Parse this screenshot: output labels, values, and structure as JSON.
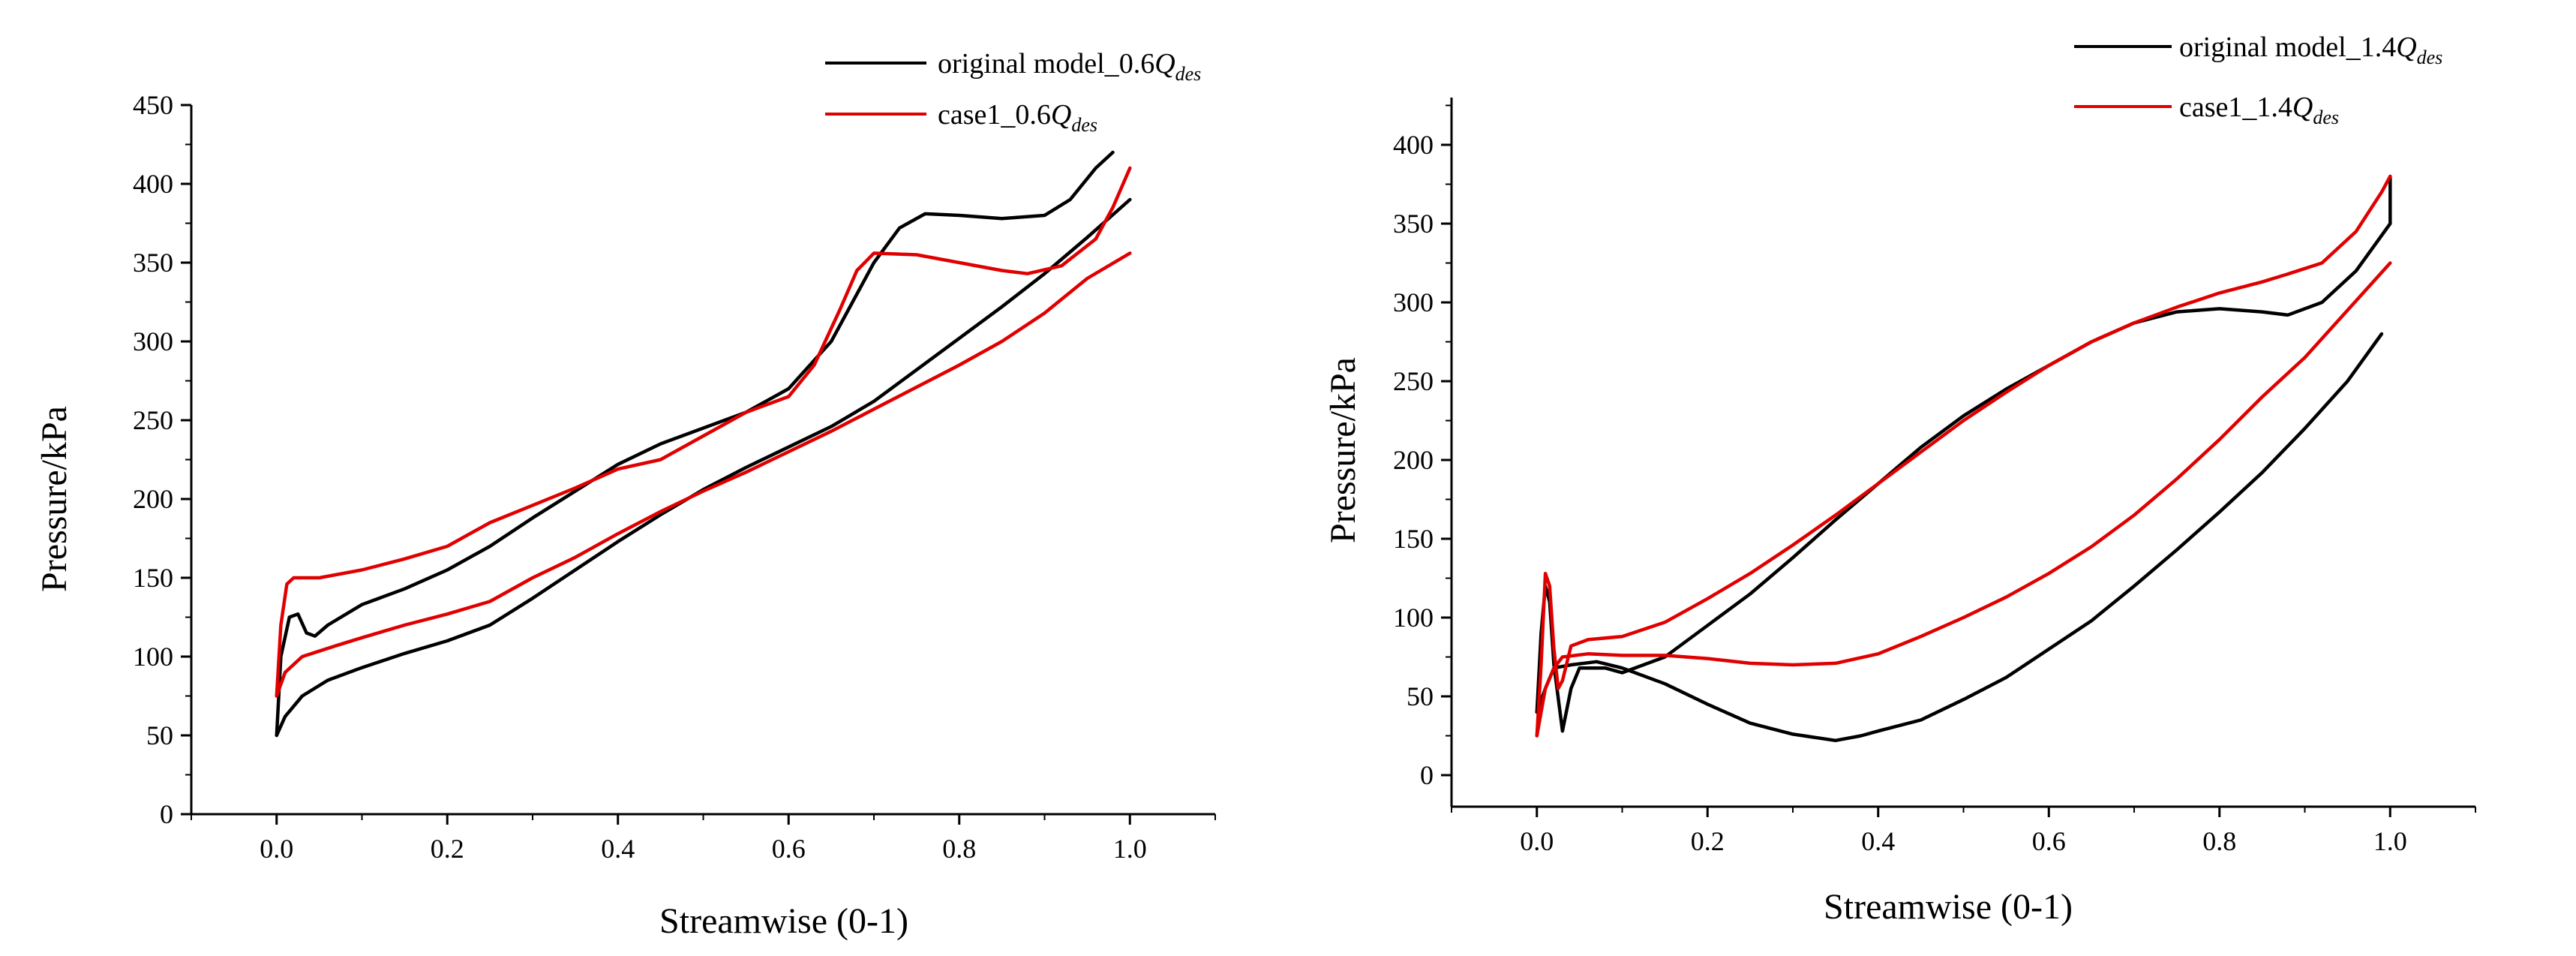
{
  "colors": {
    "original": "#000000",
    "case1": "#e00000"
  },
  "chart_data": [
    {
      "type": "line",
      "xlabel": "Streamwise (0-1)",
      "ylabel": "Pressure/kPa",
      "xlim": [
        -0.1,
        1.1
      ],
      "ylim": [
        0,
        450
      ],
      "xticks": [
        0.0,
        0.2,
        0.4,
        0.6,
        0.8,
        1.0
      ],
      "xtick_labels": [
        "0.0",
        "0.2",
        "0.4",
        "0.6",
        "0.8",
        "1.0"
      ],
      "yticks": [
        0,
        50,
        100,
        150,
        200,
        250,
        300,
        350,
        400,
        450
      ],
      "ytick_labels": [
        "0",
        "50",
        "100",
        "150",
        "200",
        "250",
        "300",
        "350",
        "400",
        "450"
      ],
      "legend": [
        {
          "prefix": "original model_",
          "mult": "0.6",
          "q": "Q",
          "sub": "des",
          "series": "original"
        },
        {
          "prefix": "case1_",
          "mult": "0.6",
          "q": "Q",
          "sub": "des",
          "series": "case1"
        }
      ],
      "series": [
        {
          "name": "original model_0.6Qdes upper",
          "color_key": "original",
          "points": [
            [
              0,
              50
            ],
            [
              0.005,
              100
            ],
            [
              0.015,
              125
            ],
            [
              0.025,
              127
            ],
            [
              0.035,
              115
            ],
            [
              0.045,
              113
            ],
            [
              0.06,
              120
            ],
            [
              0.1,
              133
            ],
            [
              0.15,
              143
            ],
            [
              0.2,
              155
            ],
            [
              0.25,
              170
            ],
            [
              0.3,
              188
            ],
            [
              0.35,
              205
            ],
            [
              0.4,
              222
            ],
            [
              0.45,
              235
            ],
            [
              0.5,
              245
            ],
            [
              0.55,
              255
            ],
            [
              0.6,
              270
            ],
            [
              0.65,
              300
            ],
            [
              0.7,
              350
            ],
            [
              0.73,
              372
            ],
            [
              0.76,
              381
            ],
            [
              0.8,
              380
            ],
            [
              0.85,
              378
            ],
            [
              0.9,
              380
            ],
            [
              0.93,
              390
            ],
            [
              0.96,
              410
            ],
            [
              0.98,
              420
            ]
          ]
        },
        {
          "name": "original model_0.6Qdes lower",
          "color_key": "original",
          "points": [
            [
              0,
              50
            ],
            [
              0.01,
              62
            ],
            [
              0.03,
              75
            ],
            [
              0.06,
              85
            ],
            [
              0.1,
              93
            ],
            [
              0.15,
              102
            ],
            [
              0.2,
              110
            ],
            [
              0.25,
              120
            ],
            [
              0.3,
              137
            ],
            [
              0.35,
              155
            ],
            [
              0.4,
              173
            ],
            [
              0.45,
              190
            ],
            [
              0.5,
              206
            ],
            [
              0.55,
              220
            ],
            [
              0.6,
              233
            ],
            [
              0.65,
              246
            ],
            [
              0.7,
              262
            ],
            [
              0.75,
              282
            ],
            [
              0.8,
              302
            ],
            [
              0.85,
              322
            ],
            [
              0.9,
              343
            ],
            [
              0.95,
              366
            ],
            [
              1.0,
              390
            ]
          ]
        },
        {
          "name": "case1_0.6Qdes upper",
          "color_key": "case1",
          "points": [
            [
              0,
              75
            ],
            [
              0.005,
              120
            ],
            [
              0.012,
              146
            ],
            [
              0.02,
              150
            ],
            [
              0.05,
              150
            ],
            [
              0.1,
              155
            ],
            [
              0.15,
              162
            ],
            [
              0.2,
              170
            ],
            [
              0.25,
              185
            ],
            [
              0.3,
              196
            ],
            [
              0.35,
              207
            ],
            [
              0.4,
              219
            ],
            [
              0.45,
              225
            ],
            [
              0.5,
              240
            ],
            [
              0.55,
              255
            ],
            [
              0.6,
              265
            ],
            [
              0.63,
              285
            ],
            [
              0.66,
              320
            ],
            [
              0.68,
              345
            ],
            [
              0.7,
              356
            ],
            [
              0.75,
              355
            ],
            [
              0.8,
              350
            ],
            [
              0.85,
              345
            ],
            [
              0.88,
              343
            ],
            [
              0.92,
              348
            ],
            [
              0.96,
              365
            ],
            [
              0.98,
              385
            ],
            [
              1.0,
              410
            ]
          ]
        },
        {
          "name": "case1_0.6Qdes lower",
          "color_key": "case1",
          "points": [
            [
              0,
              75
            ],
            [
              0.01,
              90
            ],
            [
              0.03,
              100
            ],
            [
              0.07,
              107
            ],
            [
              0.1,
              112
            ],
            [
              0.15,
              120
            ],
            [
              0.2,
              127
            ],
            [
              0.25,
              135
            ],
            [
              0.3,
              150
            ],
            [
              0.35,
              163
            ],
            [
              0.4,
              178
            ],
            [
              0.45,
              192
            ],
            [
              0.5,
              205
            ],
            [
              0.55,
              217
            ],
            [
              0.6,
              230
            ],
            [
              0.65,
              243
            ],
            [
              0.7,
              257
            ],
            [
              0.75,
              271
            ],
            [
              0.8,
              285
            ],
            [
              0.85,
              300
            ],
            [
              0.9,
              318
            ],
            [
              0.95,
              340
            ],
            [
              1.0,
              356
            ]
          ]
        }
      ]
    },
    {
      "type": "line",
      "xlabel": "Streamwise (0-1)",
      "ylabel": "Pressure/kPa",
      "xlim": [
        -0.1,
        1.1
      ],
      "ylim": [
        -20,
        430
      ],
      "xticks": [
        0.0,
        0.2,
        0.4,
        0.6,
        0.8,
        1.0
      ],
      "xtick_labels": [
        "0.0",
        "0.2",
        "0.4",
        "0.6",
        "0.8",
        "1.0"
      ],
      "yticks": [
        0,
        50,
        100,
        150,
        200,
        250,
        300,
        350,
        400
      ],
      "ytick_labels": [
        "0",
        "50",
        "100",
        "150",
        "200",
        "250",
        "300",
        "350",
        "400"
      ],
      "legend": [
        {
          "prefix": "original model_",
          "mult": "1.4",
          "q": "Q",
          "sub": "des",
          "series": "original"
        },
        {
          "prefix": "case1_",
          "mult": "1.4",
          "q": "Q",
          "sub": "des",
          "series": "case1"
        }
      ],
      "series": [
        {
          "name": "original model_1.4Qdes upper",
          "color_key": "original",
          "points": [
            [
              0,
              40
            ],
            [
              0.005,
              90
            ],
            [
              0.01,
              120
            ],
            [
              0.015,
              110
            ],
            [
              0.02,
              70
            ],
            [
              0.03,
              28
            ],
            [
              0.04,
              55
            ],
            [
              0.05,
              68
            ],
            [
              0.08,
              68
            ],
            [
              0.1,
              65
            ],
            [
              0.15,
              75
            ],
            [
              0.2,
              95
            ],
            [
              0.25,
              115
            ],
            [
              0.3,
              138
            ],
            [
              0.35,
              162
            ],
            [
              0.4,
              185
            ],
            [
              0.45,
              208
            ],
            [
              0.5,
              228
            ],
            [
              0.55,
              245
            ],
            [
              0.6,
              260
            ],
            [
              0.65,
              275
            ],
            [
              0.7,
              287
            ],
            [
              0.75,
              294
            ],
            [
              0.8,
              296
            ],
            [
              0.85,
              294
            ],
            [
              0.88,
              292
            ],
            [
              0.92,
              300
            ],
            [
              0.96,
              320
            ],
            [
              1.0,
              350
            ],
            [
              1.0,
              380
            ]
          ]
        },
        {
          "name": "original model_1.4Qdes lower",
          "color_key": "original",
          "points": [
            [
              0,
              40
            ],
            [
              0.01,
              55
            ],
            [
              0.02,
              68
            ],
            [
              0.04,
              70
            ],
            [
              0.07,
              72
            ],
            [
              0.1,
              68
            ],
            [
              0.15,
              58
            ],
            [
              0.2,
              45
            ],
            [
              0.25,
              33
            ],
            [
              0.3,
              26
            ],
            [
              0.35,
              22
            ],
            [
              0.38,
              25
            ],
            [
              0.4,
              28
            ],
            [
              0.45,
              35
            ],
            [
              0.5,
              48
            ],
            [
              0.55,
              62
            ],
            [
              0.6,
              80
            ],
            [
              0.65,
              98
            ],
            [
              0.7,
              120
            ],
            [
              0.75,
              143
            ],
            [
              0.8,
              167
            ],
            [
              0.85,
              192
            ],
            [
              0.9,
              220
            ],
            [
              0.95,
              250
            ],
            [
              0.99,
              280
            ]
          ]
        },
        {
          "name": "case1_1.4Qdes upper",
          "color_key": "case1",
          "points": [
            [
              0,
              25
            ],
            [
              0.005,
              70
            ],
            [
              0.01,
              128
            ],
            [
              0.015,
              120
            ],
            [
              0.02,
              80
            ],
            [
              0.025,
              55
            ],
            [
              0.03,
              60
            ],
            [
              0.04,
              82
            ],
            [
              0.06,
              86
            ],
            [
              0.1,
              88
            ],
            [
              0.15,
              97
            ],
            [
              0.2,
              112
            ],
            [
              0.25,
              128
            ],
            [
              0.3,
              146
            ],
            [
              0.35,
              165
            ],
            [
              0.4,
              185
            ],
            [
              0.45,
              205
            ],
            [
              0.5,
              225
            ],
            [
              0.55,
              243
            ],
            [
              0.6,
              260
            ],
            [
              0.65,
              275
            ],
            [
              0.7,
              287
            ],
            [
              0.75,
              297
            ],
            [
              0.8,
              306
            ],
            [
              0.85,
              313
            ],
            [
              0.88,
              318
            ],
            [
              0.92,
              325
            ],
            [
              0.96,
              345
            ],
            [
              0.99,
              370
            ],
            [
              1.0,
              380
            ]
          ]
        },
        {
          "name": "case1_1.4Qdes lower",
          "color_key": "case1",
          "points": [
            [
              0,
              25
            ],
            [
              0.01,
              55
            ],
            [
              0.02,
              68
            ],
            [
              0.03,
              75
            ],
            [
              0.06,
              77
            ],
            [
              0.1,
              76
            ],
            [
              0.15,
              76
            ],
            [
              0.2,
              74
            ],
            [
              0.25,
              71
            ],
            [
              0.3,
              70
            ],
            [
              0.35,
              71
            ],
            [
              0.4,
              77
            ],
            [
              0.45,
              88
            ],
            [
              0.5,
              100
            ],
            [
              0.55,
              113
            ],
            [
              0.6,
              128
            ],
            [
              0.65,
              145
            ],
            [
              0.7,
              165
            ],
            [
              0.75,
              188
            ],
            [
              0.8,
              213
            ],
            [
              0.85,
              240
            ],
            [
              0.9,
              265
            ],
            [
              0.95,
              295
            ],
            [
              1.0,
              325
            ]
          ]
        }
      ]
    }
  ]
}
